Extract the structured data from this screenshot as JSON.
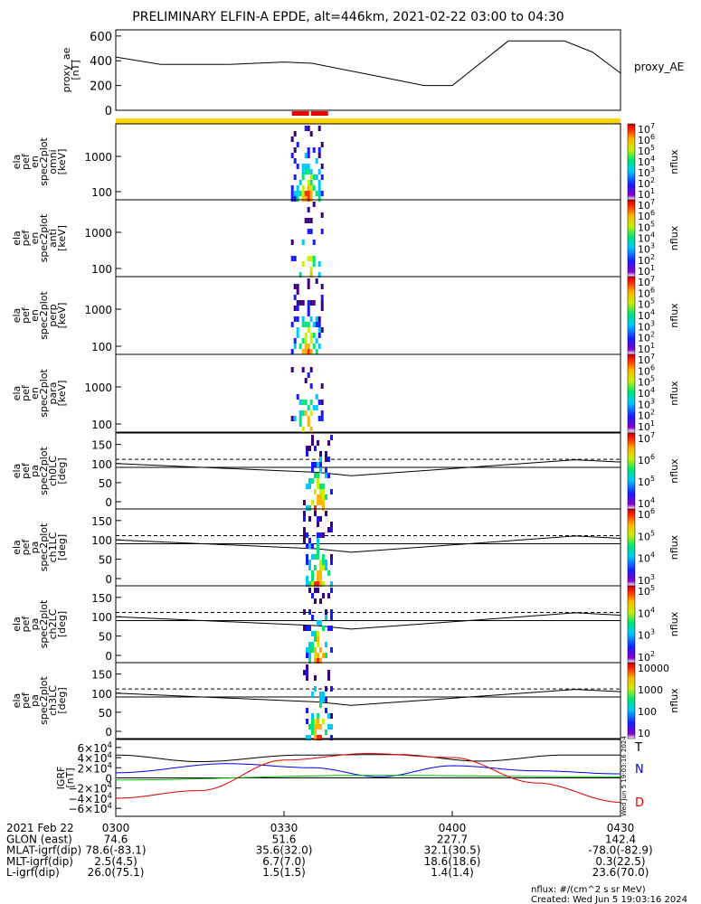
{
  "title": "PRELIMINARY ELFIN-A EPDE, alt=446km, 2021-02-22 03:00 to 04:30",
  "colors": {
    "bar_yellow": "#ffd400",
    "bar_red": "#ee0000",
    "ae_line": "#000000",
    "bx": "#0000ee",
    "by": "#00bb00",
    "bz": "#dd0000",
    "bt": "#000000"
  },
  "chart_data": [
    {
      "type": "line",
      "name": "proxy_ae",
      "ylabel_lines": [
        "proxy_ae",
        "[nT]"
      ],
      "legend": "proxy_AE",
      "ylim": [
        0,
        650
      ],
      "yticks": [
        0,
        200,
        400,
        600
      ],
      "x_minutes": [
        0,
        8,
        20,
        30,
        35,
        45,
        55,
        60,
        70,
        80,
        85,
        90
      ],
      "values": [
        430,
        370,
        370,
        390,
        380,
        290,
        200,
        200,
        560,
        560,
        470,
        300
      ]
    },
    {
      "type": "heatmap",
      "name": "spectrograms_energy",
      "panels": [
        {
          "ylabel_lines": [
            "ela",
            "pef",
            "en",
            "spec2plot",
            "omni",
            "[keV]"
          ],
          "unit": "nflux",
          "cbar_ticks": [
            "10^7",
            "10^6",
            "10^5",
            "10^4",
            "10^3",
            "10^2",
            "10^1"
          ]
        },
        {
          "ylabel_lines": [
            "ela",
            "pef",
            "en",
            "spec2plot",
            "anti",
            "[keV]"
          ],
          "unit": "nflux",
          "cbar_ticks": [
            "10^7",
            "10^6",
            "10^5",
            "10^4",
            "10^3",
            "10^2",
            "10^1"
          ]
        },
        {
          "ylabel_lines": [
            "ela",
            "pef",
            "en",
            "spec2plot",
            "perp",
            "[keV]"
          ],
          "unit": "nflux",
          "cbar_ticks": [
            "10^7",
            "10^6",
            "10^5",
            "10^4",
            "10^3",
            "10^2",
            "10^1"
          ]
        },
        {
          "ylabel_lines": [
            "ela",
            "pef",
            "en",
            "spec2plot",
            "para",
            "[keV]"
          ],
          "unit": "nflux",
          "cbar_ticks": [
            "10^7",
            "10^6",
            "10^5",
            "10^4",
            "10^3",
            "10^2",
            "10^1"
          ]
        }
      ],
      "yticks": [
        "1000",
        "100"
      ],
      "science_zone_minutes": [
        33.5,
        36.5
      ]
    },
    {
      "type": "heatmap",
      "name": "spectrograms_pitch_angle",
      "panels": [
        {
          "ylabel_lines": [
            "ela",
            "pef",
            "pa",
            "spec2plot",
            "ch0LC",
            "[deg]"
          ],
          "unit": "nflux",
          "cbar_ticks": [
            "10^7",
            "10^6",
            "10^5",
            "10^4"
          ]
        },
        {
          "ylabel_lines": [
            "ela",
            "pef",
            "pa",
            "spec2plot",
            "ch1LC",
            "[deg]"
          ],
          "unit": "nflux",
          "cbar_ticks": [
            "10^6",
            "10^5",
            "10^4",
            "10^3"
          ]
        },
        {
          "ylabel_lines": [
            "ela",
            "pef",
            "pa",
            "spec2plot",
            "ch2LC",
            "[deg]"
          ],
          "unit": "nflux",
          "cbar_ticks": [
            "10^5",
            "10^4",
            "10^3",
            "10^2"
          ]
        },
        {
          "ylabel_lines": [
            "ela",
            "pef",
            "pa",
            "spec2plot",
            "ch3LC",
            "[deg]"
          ],
          "unit": "nflux",
          "cbar_ticks": [
            "10000",
            "1000",
            "100",
            "10"
          ]
        }
      ],
      "yticks": [
        150,
        100,
        50,
        0
      ],
      "ylim": [
        0,
        180
      ]
    },
    {
      "type": "line",
      "name": "igrf",
      "ylabel_lines": [
        "IGRF",
        "[nT]"
      ],
      "ylim": [
        -65000,
        65000
      ],
      "yticks": [
        "6×10^4",
        "4×10^4",
        "2×10^4",
        "0",
        "−2×10^4",
        "−4×10^4",
        "−6×10^4"
      ],
      "legend": [
        "T",
        "N",
        "D"
      ],
      "series": [
        {
          "name": "T",
          "x_minutes": [
            0,
            15,
            33,
            50,
            65,
            80,
            90
          ],
          "values": [
            45000,
            32000,
            45000,
            46000,
            33000,
            45000,
            45000
          ]
        },
        {
          "name": "N",
          "x_minutes": [
            0,
            20,
            35,
            47,
            60,
            75,
            90
          ],
          "values": [
            10000,
            28000,
            20000,
            2000,
            24000,
            14000,
            8000
          ]
        },
        {
          "name": "",
          "x_minutes": [
            0,
            45,
            90
          ],
          "values": [
            -4000,
            5000,
            2000
          ]
        },
        {
          "name": "D",
          "x_minutes": [
            0,
            15,
            30,
            45,
            60,
            75,
            90
          ],
          "values": [
            -40000,
            -25000,
            35000,
            48000,
            40000,
            -10000,
            -48000
          ]
        }
      ],
      "side_text": "Wed Jun  5 19:03:16 2024"
    }
  ],
  "x_axis": {
    "rows": [
      {
        "label": "2021 Feb 22",
        "values": [
          "0300",
          "0330",
          "0400",
          "0430"
        ]
      },
      {
        "label": "GLON (east)",
        "values": [
          "74.6",
          "51.6",
          "227.7",
          "142.4"
        ]
      },
      {
        "label": "MLAT-igrf(dip)",
        "values": [
          "78.6(-83.1)",
          "35.6(32.0)",
          "32.1(30.5)",
          "-78.0(-82.9)"
        ]
      },
      {
        "label": "MLT-igrf(dip)",
        "values": [
          "2.5(4.5)",
          "6.7(7.0)",
          "18.6(18.6)",
          "0.3(22.5)"
        ]
      },
      {
        "label": "L-igrf(dip)",
        "values": [
          "26.0(75.1)",
          "1.5(1.5)",
          "1.4(1.4)",
          "23.6(70.0)"
        ]
      }
    ]
  },
  "footer": {
    "nflux_note": "nflux: #/(cm^2 s sr MeV)",
    "created": "Created: Wed Jun  5 19:03:16 2024"
  }
}
